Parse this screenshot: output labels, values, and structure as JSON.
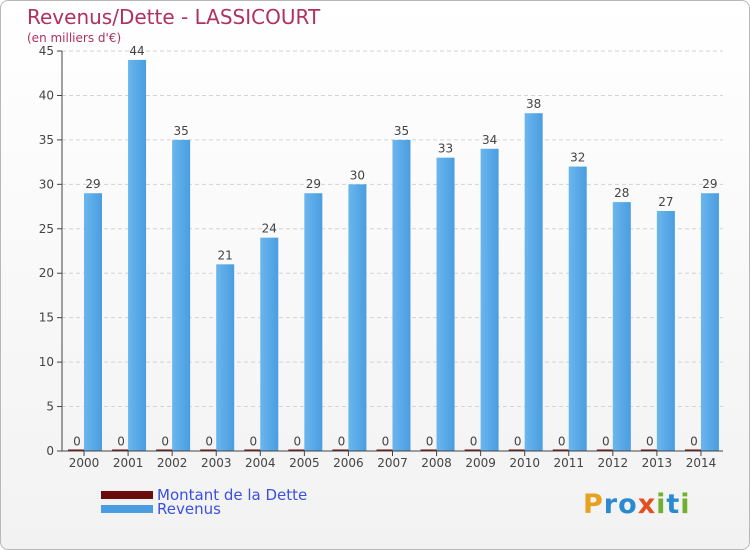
{
  "title": "Revenus/Dette - LASSICOURT",
  "subtitle": "(en milliers d'€)",
  "colors": {
    "dette": "#6b0c0c",
    "revenus": "#4a9de0",
    "axis": "#444444",
    "grid": "#d4d4d4",
    "title": "#b03060",
    "legend_text": "#3a50e0"
  },
  "chart_data": {
    "type": "bar",
    "categories": [
      "2000",
      "2001",
      "2002",
      "2003",
      "2004",
      "2005",
      "2006",
      "2007",
      "2008",
      "2009",
      "2010",
      "2011",
      "2012",
      "2013",
      "2014"
    ],
    "series": [
      {
        "name": "Montant de la Dette",
        "values": [
          0,
          0,
          0,
          0,
          0,
          0,
          0,
          0,
          0,
          0,
          0,
          0,
          0,
          0,
          0
        ]
      },
      {
        "name": "Revenus",
        "values": [
          29,
          44,
          35,
          21,
          24,
          29,
          30,
          35,
          33,
          34,
          38,
          32,
          28,
          27,
          29
        ]
      }
    ],
    "ylim": [
      0,
      45
    ],
    "yticks": [
      0,
      5,
      10,
      15,
      20,
      25,
      30,
      35,
      40,
      45
    ],
    "grid": true,
    "legend_position": "bottom-left"
  },
  "logo": {
    "letters": [
      "P",
      "r",
      "o",
      "x",
      "i",
      "t",
      "i"
    ],
    "colors": [
      "#e8a020",
      "#2a8ad0",
      "#2a8ad0",
      "#e05020",
      "#70b030",
      "#2a8ad0",
      "#70b030"
    ]
  }
}
